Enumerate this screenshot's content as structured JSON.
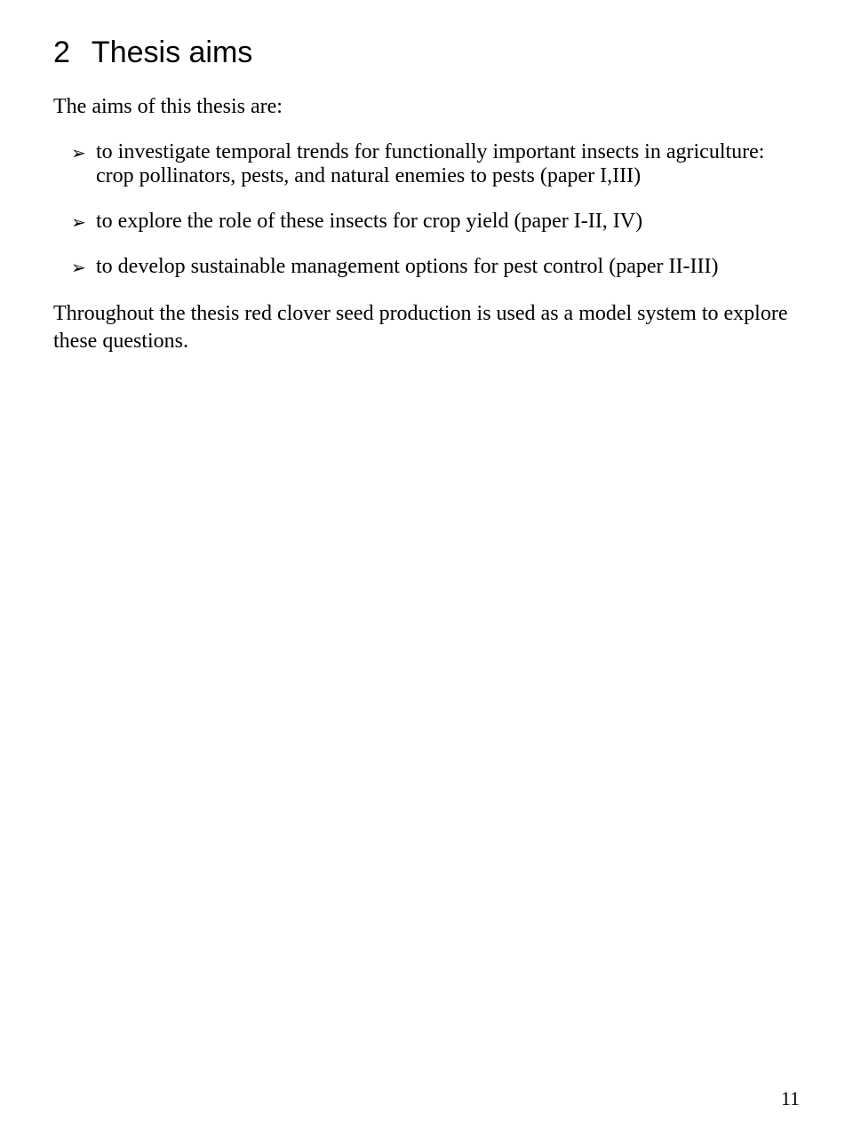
{
  "heading": {
    "number": "2",
    "title": "Thesis aims"
  },
  "intro": "The aims of this thesis are:",
  "bullets": [
    "to investigate temporal trends for functionally important insects in agriculture: crop pollinators, pests, and natural enemies to pests (paper I,III)",
    "to explore the role of these insects for crop yield (paper I-II, IV)",
    "to develop sustainable management options for pest control (paper II-III)"
  ],
  "conclusion": "Throughout the thesis red clover seed production is used as a model system to explore these questions.",
  "page_number": "11",
  "styling": {
    "heading_font": "Arial",
    "heading_fontsize": 34,
    "body_font": "Times New Roman",
    "body_fontsize": 24,
    "text_color": "#000000",
    "background_color": "#ffffff",
    "bullet_marker": "➢"
  }
}
